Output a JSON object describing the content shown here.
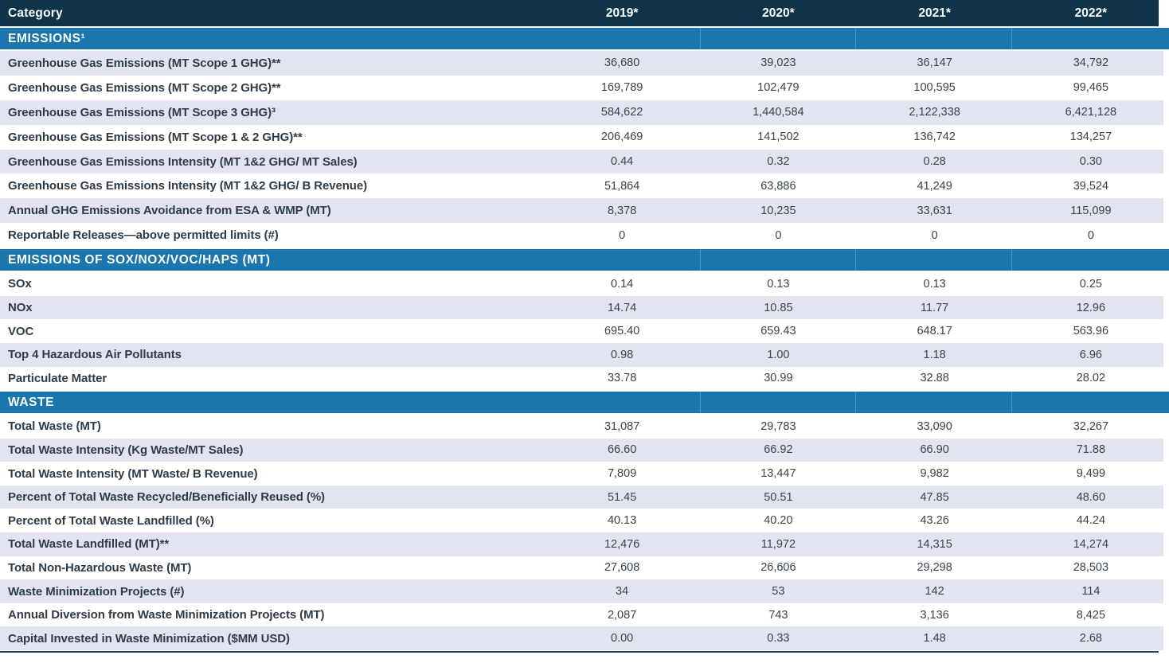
{
  "table": {
    "header": {
      "category_label": "Category",
      "years": [
        "2019*",
        "2020*",
        "2021*",
        "2022*"
      ]
    },
    "sections": [
      {
        "title": "EMISSIONS¹",
        "rows": [
          {
            "label": "Greenhouse Gas Emissions (MT Scope 1 GHG)**",
            "values": [
              "36,680",
              "39,023",
              "36,147",
              "34,792"
            ]
          },
          {
            "label": "Greenhouse Gas Emissions (MT Scope 2 GHG)**",
            "values": [
              "169,789",
              "102,479",
              "100,595",
              "99,465"
            ]
          },
          {
            "label": "Greenhouse Gas Emissions (MT Scope 3 GHG)³",
            "values": [
              "584,622",
              "1,440,584",
              "2,122,338",
              "6,421,128"
            ]
          },
          {
            "label": "Greenhouse Gas Emissions (MT Scope 1 & 2 GHG)**",
            "values": [
              "206,469",
              "141,502",
              "136,742",
              "134,257"
            ]
          },
          {
            "label": "Greenhouse Gas Emissions Intensity (MT 1&2 GHG/ MT Sales)",
            "values": [
              "0.44",
              "0.32",
              "0.28",
              "0.30"
            ]
          },
          {
            "label": "Greenhouse Gas Emissions Intensity (MT 1&2 GHG/ B Revenue)",
            "values": [
              "51,864",
              "63,886",
              "41,249",
              "39,524"
            ]
          },
          {
            "label": "Annual GHG Emissions Avoidance from ESA & WMP (MT)",
            "values": [
              "8,378",
              "10,235",
              "33,631",
              "115,099"
            ]
          },
          {
            "label": "Reportable Releases—above permitted limits (#)",
            "values": [
              "0",
              "0",
              "0",
              "0"
            ]
          }
        ]
      },
      {
        "title": "EMISSIONS OF SOX/NOX/VOC/HAPS (MT)",
        "rows": [
          {
            "label": "SOx",
            "values": [
              "0.14",
              "0.13",
              "0.13",
              "0.25"
            ]
          },
          {
            "label": "NOx",
            "values": [
              "14.74",
              "10.85",
              "11.77",
              "12.96"
            ]
          },
          {
            "label": "VOC",
            "values": [
              "695.40",
              "659.43",
              "648.17",
              "563.96"
            ]
          },
          {
            "label": "Top 4 Hazardous Air Pollutants",
            "values": [
              "0.98",
              "1.00",
              "1.18",
              "6.96"
            ]
          },
          {
            "label": "Particulate Matter",
            "values": [
              "33.78",
              "30.99",
              "32.88",
              "28.02"
            ]
          }
        ]
      },
      {
        "title": "WASTE",
        "rows": [
          {
            "label": "Total Waste (MT)",
            "values": [
              "31,087",
              "29,783",
              "33,090",
              "32,267"
            ]
          },
          {
            "label": "Total Waste Intensity (Kg Waste/MT Sales)",
            "values": [
              "66.60",
              "66.92",
              "66.90",
              "71.88"
            ]
          },
          {
            "label": "Total Waste Intensity (MT Waste/ B Revenue)",
            "values": [
              "7,809",
              "13,447",
              "9,982",
              "9,499"
            ]
          },
          {
            "label": "Percent of Total Waste Recycled/Beneficially Reused (%)",
            "values": [
              "51.45",
              "50.51",
              "47.85",
              "48.60"
            ]
          },
          {
            "label": "Percent of Total Waste Landfilled (%)",
            "values": [
              "40.13",
              "40.20",
              "43.26",
              "44.24"
            ]
          },
          {
            "label": "Total Waste Landfilled (MT)**",
            "values": [
              "12,476",
              "11,972",
              "14,315",
              "14,274"
            ]
          },
          {
            "label": "Total Non-Hazardous Waste (MT)",
            "values": [
              "27,608",
              "26,606",
              "29,298",
              "28,503"
            ]
          },
          {
            "label": "Waste Minimization Projects (#)",
            "values": [
              "34",
              "53",
              "142",
              "114"
            ]
          },
          {
            "label": "Annual Diversion from Waste Minimization Projects (MT)",
            "values": [
              "2,087",
              "743",
              "3,136",
              "8,425"
            ]
          },
          {
            "label": "Capital Invested in Waste Minimization ($MM USD)",
            "values": [
              "0.00",
              "0.33",
              "1.48",
              "2.68"
            ]
          }
        ]
      }
    ],
    "colors": {
      "header_bg": "#0f3349",
      "section_bg": "#1b76ad",
      "shaded_row_bg": "#e2e5ef",
      "label_text": "#2e3c48",
      "value_text": "#3a444c",
      "bottom_rule": "#2a4a62"
    }
  }
}
